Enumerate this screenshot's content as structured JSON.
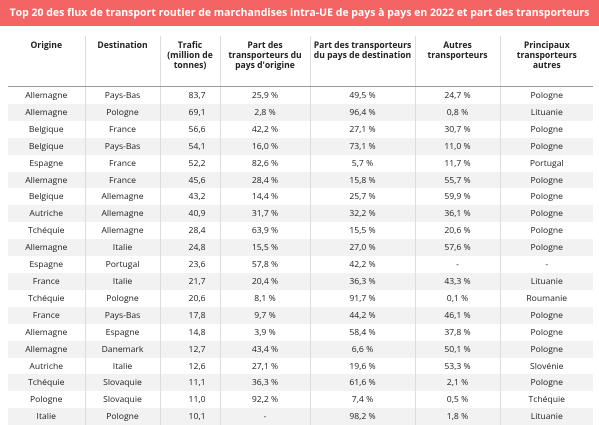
{
  "header": {
    "title": "Top 20 des flux de transport routier de marchandises intra-UE de pays à pays en 2022 et part des transporteurs"
  },
  "table": {
    "columns": [
      "Origine",
      "Destination",
      "Trafic (million de tonnes)",
      "Part des transporteurs du pays d'origine",
      "Part des transporteurs du pays de destination",
      "Autres transporteurs",
      "Principaux transporteurs autres"
    ],
    "rows": [
      [
        "Allemagne",
        "Pays-Bas",
        "83,7",
        "25,9 %",
        "49,5 %",
        "24,7 %",
        "Pologne"
      ],
      [
        "Allemagne",
        "Pologne",
        "69,1",
        "2,8 %",
        "96,4 %",
        "0,8 %",
        "Lituanie"
      ],
      [
        "Belgique",
        "France",
        "56,6",
        "42,2 %",
        "27,1 %",
        "30,7 %",
        "Pologne"
      ],
      [
        "Belgique",
        "Pays-Bas",
        "54,1",
        "16,0 %",
        "73,1 %",
        "11,0 %",
        "Pologne"
      ],
      [
        "Espagne",
        "France",
        "52,2",
        "82,6 %",
        "5,7 %",
        "11,7 %",
        "Portugal"
      ],
      [
        "Allemagne",
        "France",
        "45,6",
        "28,4 %",
        "15,8 %",
        "55,7 %",
        "Pologne"
      ],
      [
        "Belgique",
        "Allemagne",
        "43,2",
        "14,4 %",
        "25,7 %",
        "59,9 %",
        "Pologne"
      ],
      [
        "Autriche",
        "Allemagne",
        "40,9",
        "31,7 %",
        "32,2 %",
        "36,1 %",
        "Pologne"
      ],
      [
        "Tchéquie",
        "Allemagne",
        "28,4",
        "63,9 %",
        "15,5 %",
        "20,6 %",
        "Pologne"
      ],
      [
        "Allemagne",
        "Italie",
        "24,8",
        "15,5 %",
        "27,0 %",
        "57,6 %",
        "Pologne"
      ],
      [
        "Espagne",
        "Portugal",
        "23,6",
        "57,8 %",
        "42,2 %",
        "-",
        "-"
      ],
      [
        "France",
        "Italie",
        "21,7",
        "20,4 %",
        "36,3 %",
        "43,3 %",
        "Lituanie"
      ],
      [
        "Tchéquie",
        "Pologne",
        "20,6",
        "8,1 %",
        "91,7 %",
        "0,1 %",
        "Roumanie"
      ],
      [
        "France",
        "Pays-Bas",
        "17,8",
        "9,7 %",
        "44,2 %",
        "46,1 %",
        "Pologne"
      ],
      [
        "Allemagne",
        "Espagne",
        "14,8",
        "3,9 %",
        "58,4 %",
        "37,8 %",
        "Pologne"
      ],
      [
        "Allemagne",
        "Danemark",
        "12,7",
        "43,4 %",
        "6,6 %",
        "50,1 %",
        "Pologne"
      ],
      [
        "Autriche",
        "Italie",
        "12,6",
        "27,1 %",
        "19,6 %",
        "53,3 %",
        "Slovénie"
      ],
      [
        "Tchéquie",
        "Slovaquie",
        "11,1",
        "36,3 %",
        "61,6 %",
        "2,1 %",
        "Pologne"
      ],
      [
        "Pologne",
        "Slovaquie",
        "11,0",
        "92,2 %",
        "7,4 %",
        "0,5 %",
        "Tchéquie"
      ],
      [
        "Italie",
        "Pologne",
        "10,1",
        "-",
        "98,2 %",
        "1,8 %",
        "Lituanie"
      ]
    ]
  }
}
